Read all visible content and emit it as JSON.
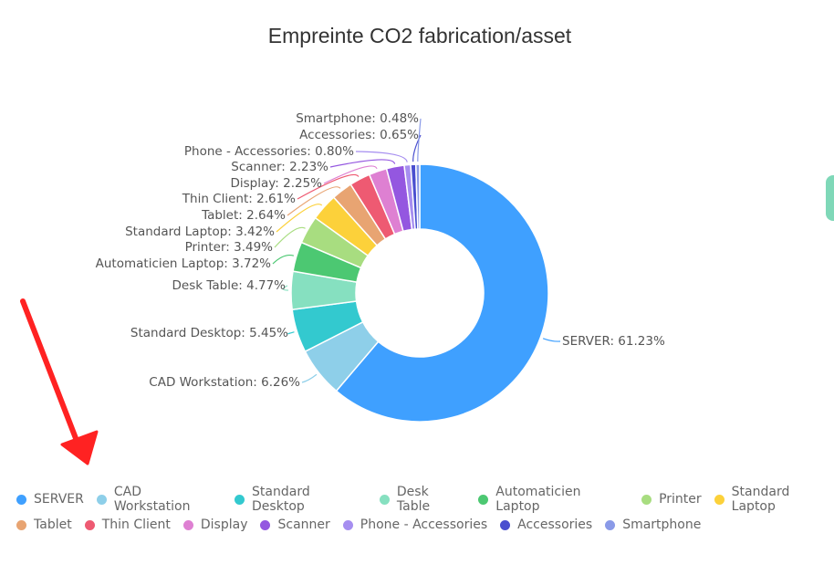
{
  "chart_data": {
    "type": "pie",
    "variant": "donut",
    "title": "Empreinte CO2 fabrication/asset",
    "categories": [
      "SERVER",
      "CAD Workstation",
      "Standard Desktop",
      "Desk Table",
      "Automaticien Laptop",
      "Printer",
      "Standard Laptop",
      "Tablet",
      "Thin Client",
      "Display",
      "Scanner",
      "Phone - Accessories",
      "Accessories",
      "Smartphone"
    ],
    "values": [
      61.23,
      6.26,
      5.45,
      4.77,
      3.72,
      3.49,
      3.42,
      2.64,
      2.61,
      2.25,
      2.23,
      0.8,
      0.65,
      0.48
    ],
    "labels": [
      "SERVER: 61.23%",
      "CAD Workstation: 6.26%",
      "Standard Desktop: 5.45%",
      "Desk Table: 4.77%",
      "Automaticien Laptop: 3.72%",
      "Printer: 3.49%",
      "Standard Laptop: 3.42%",
      "Tablet: 2.64%",
      "Thin Client: 2.61%",
      "Display: 2.25%",
      "Scanner: 2.23%",
      "Phone - Accessories: 0.80%",
      "Accessories: 0.65%",
      "Smartphone: 0.48%"
    ],
    "colors": [
      "#3fa0ff",
      "#8ecfe9",
      "#33c9cf",
      "#86e0c0",
      "#4cc872",
      "#a8dd80",
      "#fcd13a",
      "#e8a472",
      "#ee5a72",
      "#de80d2",
      "#9457e0",
      "#a68ef0",
      "#4a4fcf",
      "#8a9ae8"
    ],
    "unit": "%",
    "legend_placement": "bottom-left"
  }
}
